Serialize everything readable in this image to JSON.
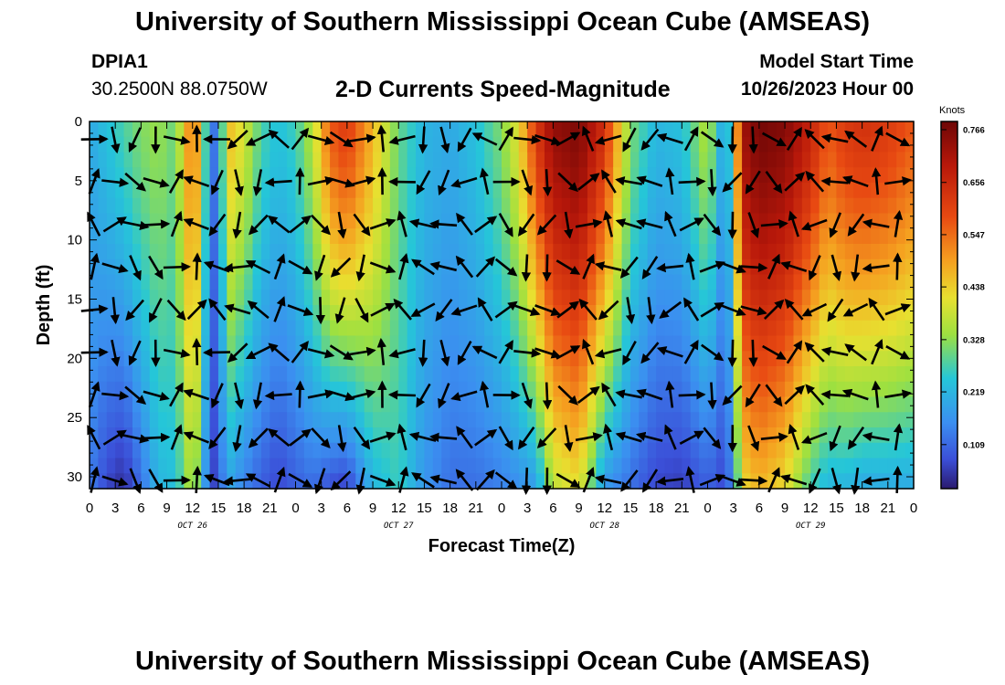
{
  "header": {
    "title": "University of Southern Mississippi Ocean Cube (AMSEAS)",
    "station_id": "DPIA1",
    "coords": "30.2500N  88.0750W",
    "subtitle": "2-D Currents Speed-Magnitude",
    "model_start_label": "Model Start Time",
    "model_start_value": "10/26/2023 Hour 00"
  },
  "footer": {
    "title": "University of Southern Mississippi Ocean Cube (AMSEAS)"
  },
  "chart_data": {
    "type": "heatmap",
    "title": "2-D Currents Speed-Magnitude",
    "xlabel": "Forecast Time(Z)",
    "ylabel": "Depth (ft)",
    "x_range_hours": [
      0,
      96
    ],
    "x_tick_labels": [
      "0",
      "3",
      "6",
      "9",
      "12",
      "15",
      "18",
      "21",
      "0",
      "3",
      "6",
      "9",
      "12",
      "15",
      "18",
      "21",
      "0",
      "3",
      "6",
      "9",
      "12",
      "15",
      "18",
      "21",
      "0",
      "3",
      "6",
      "9",
      "12",
      "15",
      "18",
      "21",
      "0"
    ],
    "x_date_labels": [
      "OCT 26",
      "OCT 27",
      "OCT 28",
      "OCT 29"
    ],
    "y_range_ft": [
      0,
      31
    ],
    "y_ticks": [
      0,
      5,
      10,
      15,
      20,
      25,
      30
    ],
    "colorbar": {
      "unit": "Knots",
      "min": 0.0,
      "max": 0.766,
      "ticks": [
        0.766,
        0.656,
        0.547,
        0.438,
        0.328,
        0.219,
        0.109
      ]
    },
    "speed_profile": {
      "description": "approximate current speed (knots) per forecast hour at surface and bottom",
      "hours": [
        0,
        2,
        4,
        6,
        8,
        10,
        12,
        13,
        14,
        15,
        16,
        18,
        20,
        22,
        24,
        26,
        28,
        30,
        33,
        36,
        39,
        42,
        45,
        48,
        50,
        52,
        54,
        57,
        60,
        63,
        66,
        69,
        72,
        74,
        75,
        76,
        78,
        81,
        84,
        86,
        88,
        90,
        93,
        96
      ],
      "surface": [
        0.18,
        0.22,
        0.26,
        0.3,
        0.32,
        0.28,
        0.55,
        0.4,
        0.12,
        0.1,
        0.45,
        0.38,
        0.26,
        0.22,
        0.25,
        0.35,
        0.55,
        0.6,
        0.45,
        0.28,
        0.2,
        0.18,
        0.22,
        0.3,
        0.4,
        0.6,
        0.72,
        0.75,
        0.62,
        0.3,
        0.2,
        0.22,
        0.35,
        0.15,
        0.3,
        0.7,
        0.76,
        0.74,
        0.65,
        0.55,
        0.6,
        0.62,
        0.6,
        0.55
      ],
      "bottom": [
        0.12,
        0.05,
        0.02,
        0.1,
        0.2,
        0.22,
        0.35,
        0.25,
        0.05,
        0.05,
        0.18,
        0.12,
        0.08,
        0.05,
        0.08,
        0.1,
        0.06,
        0.04,
        0.2,
        0.25,
        0.15,
        0.1,
        0.1,
        0.12,
        0.14,
        0.16,
        0.35,
        0.4,
        0.15,
        0.1,
        0.05,
        0.04,
        0.08,
        0.05,
        0.15,
        0.4,
        0.45,
        0.4,
        0.25,
        0.2,
        0.2,
        0.18,
        0.18,
        0.18
      ]
    }
  }
}
